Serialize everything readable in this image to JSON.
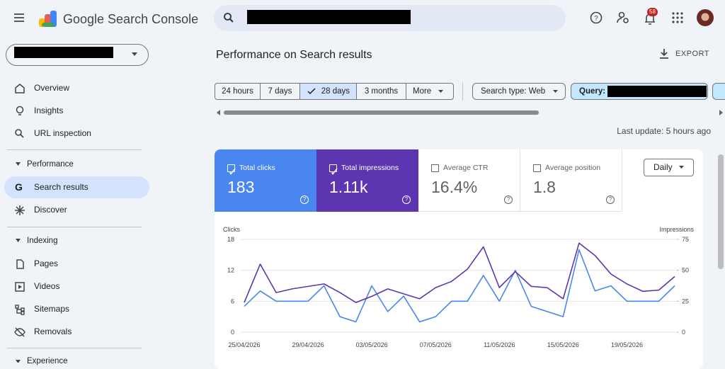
{
  "header": {
    "product": "Google Search Console",
    "notifications": "58"
  },
  "sidebar": {
    "top": [
      "Overview",
      "Insights",
      "URL inspection"
    ],
    "groups": [
      {
        "title": "Performance",
        "items": [
          "Search results",
          "Discover"
        ]
      },
      {
        "title": "Indexing",
        "items": [
          "Pages",
          "Videos",
          "Sitemaps",
          "Removals"
        ]
      },
      {
        "title": "Experience"
      }
    ]
  },
  "page": {
    "title": "Performance on Search results",
    "export": "EXPORT"
  },
  "filters": {
    "ranges": [
      "24 hours",
      "7 days",
      "28 days",
      "3 months",
      "More"
    ],
    "search_type": "Search type: Web",
    "query": "Query:"
  },
  "last_update": "Last update: 5 hours ago",
  "metrics": [
    {
      "label": "Total clicks",
      "value": "183"
    },
    {
      "label": "Total impressions",
      "value": "1.11k"
    },
    {
      "label": "Average CTR",
      "value": "16.4%"
    },
    {
      "label": "Average position",
      "value": "1.8"
    }
  ],
  "granularity": "Daily",
  "chart_data": {
    "type": "line",
    "y_label": "Clicks",
    "y2_label": "Impressions",
    "categories": [
      "25/04/2026",
      null,
      null,
      null,
      "29/04/2026",
      null,
      null,
      null,
      "03/05/2026",
      null,
      null,
      null,
      "07/05/2026",
      null,
      null,
      null,
      "11/05/2026",
      null,
      null,
      null,
      "15/05/2026",
      null,
      null,
      null,
      "19/05/2026",
      null,
      null,
      null
    ],
    "series": [
      {
        "name": "Clicks",
        "color": "#4a86f0",
        "values": [
          5,
          8,
          6,
          6,
          6,
          9,
          3,
          2,
          9,
          4,
          7,
          2,
          3,
          6,
          6,
          11,
          6,
          12,
          5,
          4,
          3,
          16,
          8,
          9,
          6,
          6,
          6,
          9
        ]
      },
      {
        "name": "Impressions",
        "color": "#5e35b1",
        "axis": "y2",
        "values": [
          24,
          55,
          32,
          35,
          37,
          39,
          32,
          24,
          29,
          35,
          31,
          27,
          36,
          41,
          51,
          69,
          36,
          49,
          37,
          36,
          27,
          72,
          62,
          47,
          39,
          33,
          34,
          45
        ]
      }
    ],
    "ylim": [
      0,
      18
    ],
    "yticks": [
      0,
      6,
      12,
      18
    ],
    "y2lim": [
      0,
      75
    ],
    "y2ticks": [
      0,
      25,
      50,
      75
    ],
    "grid": true
  }
}
